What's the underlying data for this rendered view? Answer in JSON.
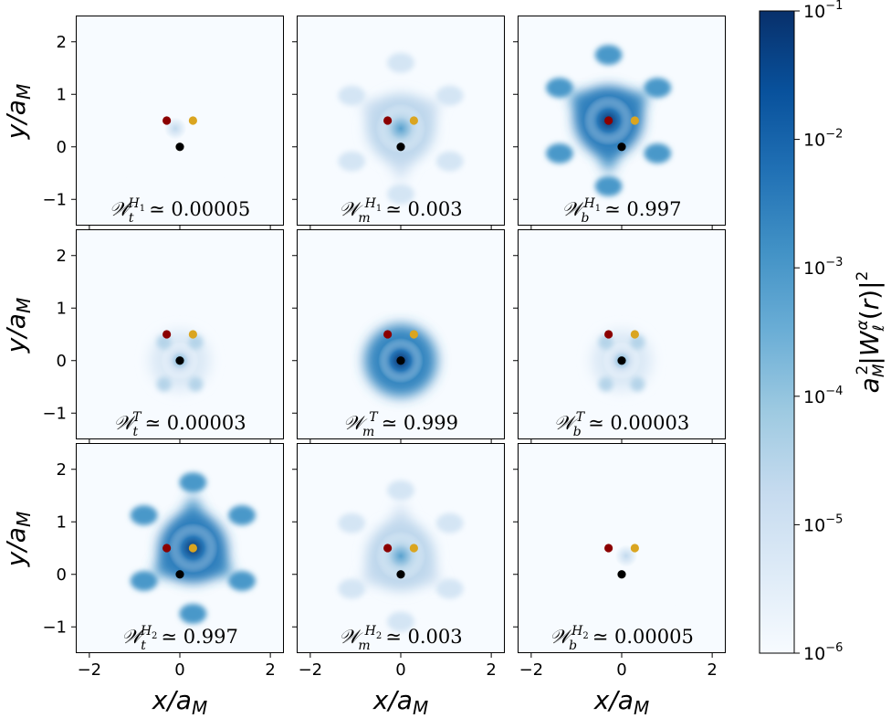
{
  "chart_data": {
    "type": "heatmap",
    "title": "",
    "xlabel": "x/a_M",
    "ylabel": "y/a_M",
    "xlim": [
      -2.3,
      2.3
    ],
    "ylim": [
      -1.5,
      2.5
    ],
    "xticks": [
      -2,
      0,
      2
    ],
    "yticks": [
      -1,
      0,
      1,
      2
    ],
    "colorbar": {
      "label": "a_M^2 |W_ℓ^α(r)|^2",
      "scale": "log",
      "range": [
        1e-06,
        0.1
      ],
      "tick_labels": [
        "10^-1",
        "10^-2",
        "10^-3",
        "10^-4",
        "10^-5",
        "10^-6"
      ],
      "tick_values": [
        0.1,
        0.01,
        0.001,
        0.0001,
        1e-05,
        1e-06
      ],
      "colors": [
        "#f7fbff",
        "#deebf7",
        "#c6dbef",
        "#9ecae1",
        "#6baed6",
        "#4292c6",
        "#2171b5",
        "#08519c",
        "#08306b"
      ]
    },
    "markers": [
      {
        "name": "dark-red",
        "x": -0.29,
        "y": 0.5,
        "color": "#8b0000"
      },
      {
        "name": "orange",
        "x": 0.29,
        "y": 0.5,
        "color": "#daa520"
      },
      {
        "name": "black",
        "x": 0.0,
        "y": 0.0,
        "color": "#000000"
      }
    ],
    "rows": [
      {
        "orbital": "H1",
        "panels": [
          {
            "layer": "t",
            "weight_label": "𝒲",
            "sub": "t",
            "sup": "H",
            "sup_sub": "1",
            "value": "≃ 0.00005"
          },
          {
            "layer": "m",
            "weight_label": "𝒲",
            "sub": "m",
            "sup": "H",
            "sup_sub": "1",
            "value": "≃ 0.003"
          },
          {
            "layer": "b",
            "weight_label": "𝒲",
            "sub": "b",
            "sup": "H",
            "sup_sub": "1",
            "value": "≃ 0.997"
          }
        ]
      },
      {
        "orbital": "T",
        "panels": [
          {
            "layer": "t",
            "weight_label": "𝒲",
            "sub": "t",
            "sup": "T",
            "sup_sub": "",
            "value": "≃ 0.00003"
          },
          {
            "layer": "m",
            "weight_label": "𝒲",
            "sub": "m",
            "sup": "T",
            "sup_sub": "",
            "value": "≃ 0.999"
          },
          {
            "layer": "b",
            "weight_label": "𝒲",
            "sub": "b",
            "sup": "T",
            "sup_sub": "",
            "value": "≃ 0.00003"
          }
        ]
      },
      {
        "orbital": "H2",
        "panels": [
          {
            "layer": "t",
            "weight_label": "𝒲",
            "sub": "t",
            "sup": "H",
            "sup_sub": "2",
            "value": "≃ 0.997"
          },
          {
            "layer": "m",
            "weight_label": "𝒲",
            "sub": "m",
            "sup": "H",
            "sup_sub": "2",
            "value": "≃ 0.003"
          },
          {
            "layer": "b",
            "weight_label": "𝒲",
            "sub": "b",
            "sup": "H",
            "sup_sub": "2",
            "value": "≃ 0.00005"
          }
        ]
      }
    ],
    "density_centers": [
      [
        {
          "x": -0.1,
          "y": 0.35,
          "peak": 2e-05
        },
        {
          "x": 0.0,
          "y": 0.35,
          "peak": 0.0006
        },
        {
          "x": -0.29,
          "y": 0.5,
          "peak": 0.08
        }
      ],
      [
        {
          "x": 0.0,
          "y": 0.0,
          "peak": 0.0002
        },
        {
          "x": 0.0,
          "y": 0.0,
          "peak": 0.09
        },
        {
          "x": 0.0,
          "y": 0.0,
          "peak": 0.0002
        }
      ],
      [
        {
          "x": 0.29,
          "y": 0.5,
          "peak": 0.08
        },
        {
          "x": 0.0,
          "y": 0.35,
          "peak": 0.0006
        },
        {
          "x": 0.1,
          "y": 0.35,
          "peak": 2e-05
        }
      ]
    ]
  }
}
